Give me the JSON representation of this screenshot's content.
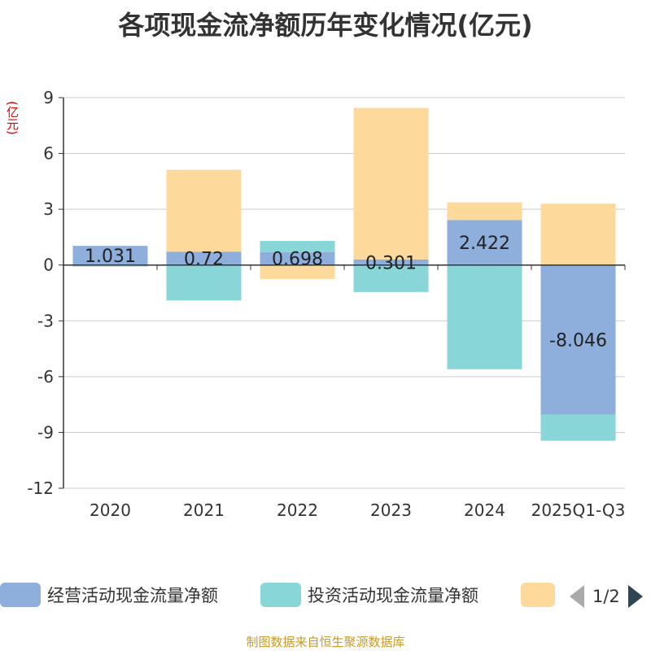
{
  "title": "各项现金流净额历年变化情况(亿元)",
  "unit_label": "(亿元)",
  "source": "制图数据来自恒生聚源数据库",
  "legend": {
    "items": [
      {
        "label": "经营活动现金流量净额",
        "color": "#8eaedc"
      },
      {
        "label": "投资活动现金流量净额",
        "color": "#88d6d8"
      },
      {
        "label": "",
        "color": "#fdd99b"
      }
    ],
    "page": "1/2"
  },
  "chart_data": {
    "type": "bar",
    "stacked": true,
    "title": "各项现金流净额历年变化情况(亿元)",
    "ylabel": "(亿元)",
    "xlabel": "",
    "ylim": [
      -12,
      9
    ],
    "yticks": [
      9,
      6,
      3,
      0,
      -3,
      -6,
      -9,
      -12
    ],
    "categories": [
      "2020",
      "2021",
      "2022",
      "2023",
      "2024",
      "2025Q1-Q3"
    ],
    "series": [
      {
        "name": "经营活动现金流量净额",
        "color": "#8eaedc",
        "values": [
          1.031,
          0.72,
          0.698,
          0.301,
          2.422,
          -8.046
        ],
        "labels": [
          "1.031",
          "0.72",
          "0.698",
          "0.301",
          "2.422",
          "-8.046"
        ]
      },
      {
        "name": "投资活动现金流量净额",
        "color": "#88d6d8",
        "values": [
          -0.05,
          -1.9,
          0.6,
          -1.45,
          -5.6,
          -1.4
        ]
      },
      {
        "name": "",
        "color": "#fdd99b",
        "values": [
          -0.05,
          4.4,
          -0.75,
          8.15,
          0.95,
          3.3
        ]
      }
    ]
  }
}
